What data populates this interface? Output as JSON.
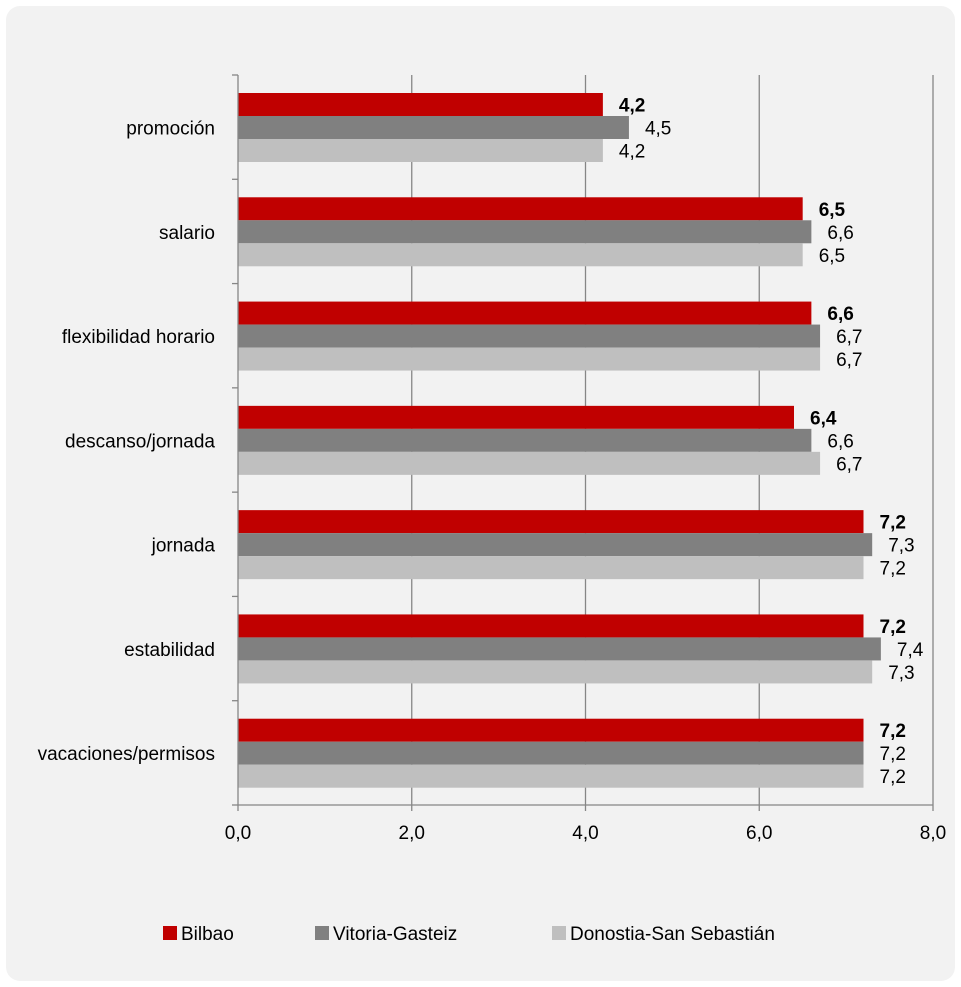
{
  "chart_data": {
    "type": "bar",
    "orientation": "horizontal",
    "categories": [
      "promoción",
      "salario",
      "flexibilidad horario",
      "descanso/jornada",
      "jornada",
      "estabilidad",
      "vacaciones/permisos"
    ],
    "series": [
      {
        "name": "Bilbao",
        "color": "#c00000",
        "bold_labels": true,
        "values": [
          4.2,
          6.5,
          6.6,
          6.4,
          7.2,
          7.2,
          7.2
        ]
      },
      {
        "name": "Vitoria-Gasteiz",
        "color": "#808080",
        "bold_labels": false,
        "values": [
          4.5,
          6.6,
          6.7,
          6.6,
          7.3,
          7.4,
          7.2
        ]
      },
      {
        "name": "Donostia-San Sebastián",
        "color": "#bfbfbf",
        "bold_labels": false,
        "values": [
          4.2,
          6.5,
          6.7,
          6.7,
          7.2,
          7.3,
          7.2
        ]
      }
    ],
    "xlim": [
      0,
      8
    ],
    "x_ticks": [
      "0,0",
      "2,0",
      "4,0",
      "6,0",
      "8,0"
    ],
    "grid": true,
    "legend_position": "bottom",
    "decimal_separator": ","
  }
}
